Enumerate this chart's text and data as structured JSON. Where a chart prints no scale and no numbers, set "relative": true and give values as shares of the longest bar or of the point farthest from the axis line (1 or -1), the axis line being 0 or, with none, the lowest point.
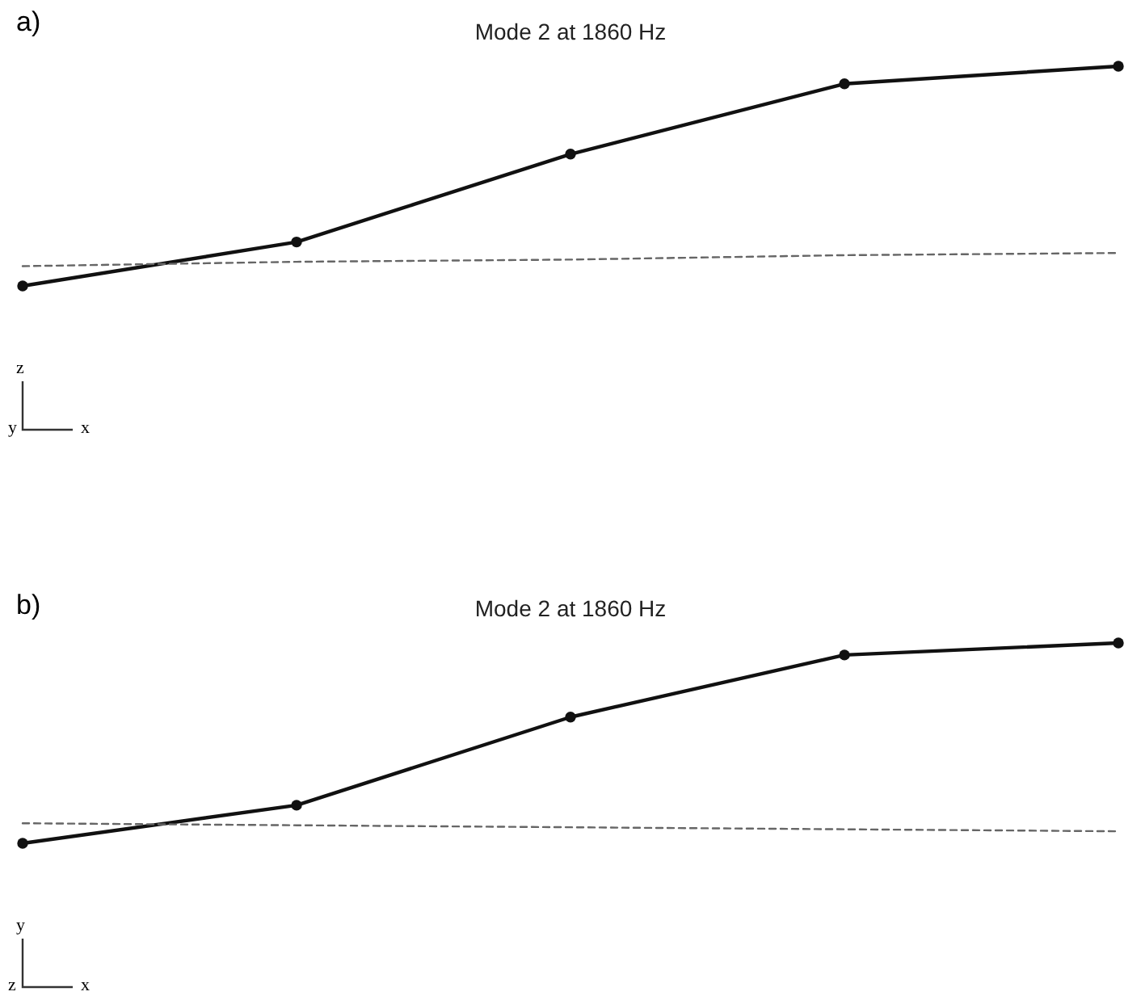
{
  "chart_data": [
    {
      "type": "line",
      "title": "Mode 2 at 1860 Hz",
      "relative": true,
      "categories": [
        null,
        null,
        null,
        null,
        null
      ],
      "annotations": [
        "a)",
        "z",
        "y",
        "x"
      ],
      "series": [
        {
          "color": "#111111",
          "marker": "circle",
          "line_style": "solid",
          "values": [
            0,
            0.2,
            0.6,
            0.92,
            1
          ]
        },
        {
          "color": "#666666",
          "marker": "none",
          "line_style": "dashed",
          "values": [
            0.09,
            0.11,
            0.12,
            0.14,
            0.15
          ]
        }
      ]
    },
    {
      "type": "line",
      "title": "Mode 2 at 1860 Hz",
      "relative": true,
      "categories": [
        null,
        null,
        null,
        null,
        null
      ],
      "annotations": [
        "b)",
        "y",
        "z",
        "x"
      ],
      "series": [
        {
          "color": "#111111",
          "marker": "circle",
          "line_style": "solid",
          "values": [
            0,
            0.19,
            0.63,
            0.94,
            1
          ]
        },
        {
          "color": "#666666",
          "marker": "none",
          "line_style": "dashed",
          "values": [
            0.1,
            0.09,
            0.08,
            0.07,
            0.06
          ]
        }
      ]
    }
  ]
}
